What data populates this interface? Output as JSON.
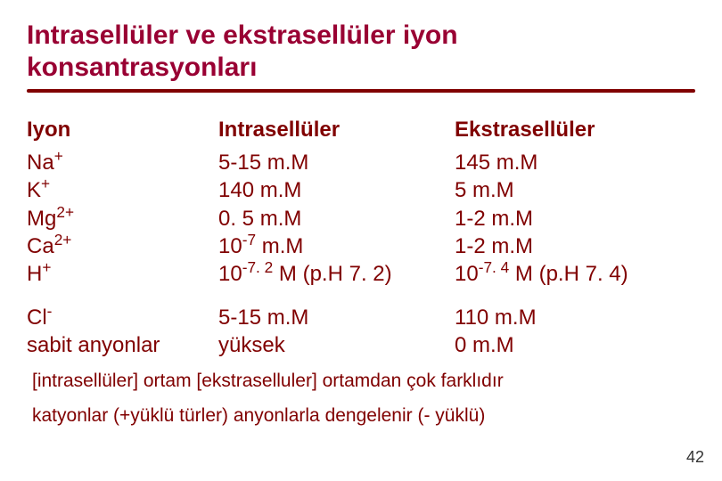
{
  "title_line1": "Intrasellüler ve ekstrasellüler iyon",
  "title_line2": "konsantrasyonları",
  "headers": {
    "c0": "Iyon",
    "c1": "Intrasellüler",
    "c2": "Ekstrasellüler"
  },
  "ions_block1": {
    "na": {
      "name": "Na",
      "charge": "+"
    },
    "k": {
      "name": "K",
      "charge": "+"
    },
    "mg": {
      "name": "Mg",
      "charge": "2+"
    },
    "ca": {
      "name": "Ca",
      "charge": "2+"
    },
    "h": {
      "name": "H",
      "charge": "+"
    }
  },
  "intra_block1": {
    "na": " 5-15 m.M",
    "k": "140 m.M",
    "mg": "0. 5 m.M",
    "ca_pre": "10",
    "ca_sup": "-7",
    "ca_post": " m.M",
    "h_pre": "10",
    "h_sup": "-7. 2",
    "h_post": " M (p.H 7. 2)"
  },
  "extra_block1": {
    "na": "145 m.M",
    "k": "5 m.M",
    "mg": "1-2 m.M",
    "ca": "1-2 m.M",
    "h_pre": "10",
    "h_sup": "-7. 4",
    "h_post": " M (p.H 7. 4)"
  },
  "ions_block2": {
    "cl": {
      "name": "Cl",
      "charge": "-"
    },
    "sabit": "sabit anyonlar"
  },
  "intra_block2": {
    "cl": "5-15 m.M",
    "sabit": "yüksek"
  },
  "extra_block2": {
    "cl": "110 m.M",
    "sabit": "0 m.M"
  },
  "note1": "[intrasellüler] ortam [ekstraselluler] ortamdan çok farklıdır",
  "note2": "katyonlar (+yüklü türler) anyonlarla dengelenir (- yüklü)",
  "page_number": "42",
  "colors": {
    "accent": "#800000",
    "title": "#990033",
    "bg": "#ffffff",
    "pagenum": "#333333"
  }
}
